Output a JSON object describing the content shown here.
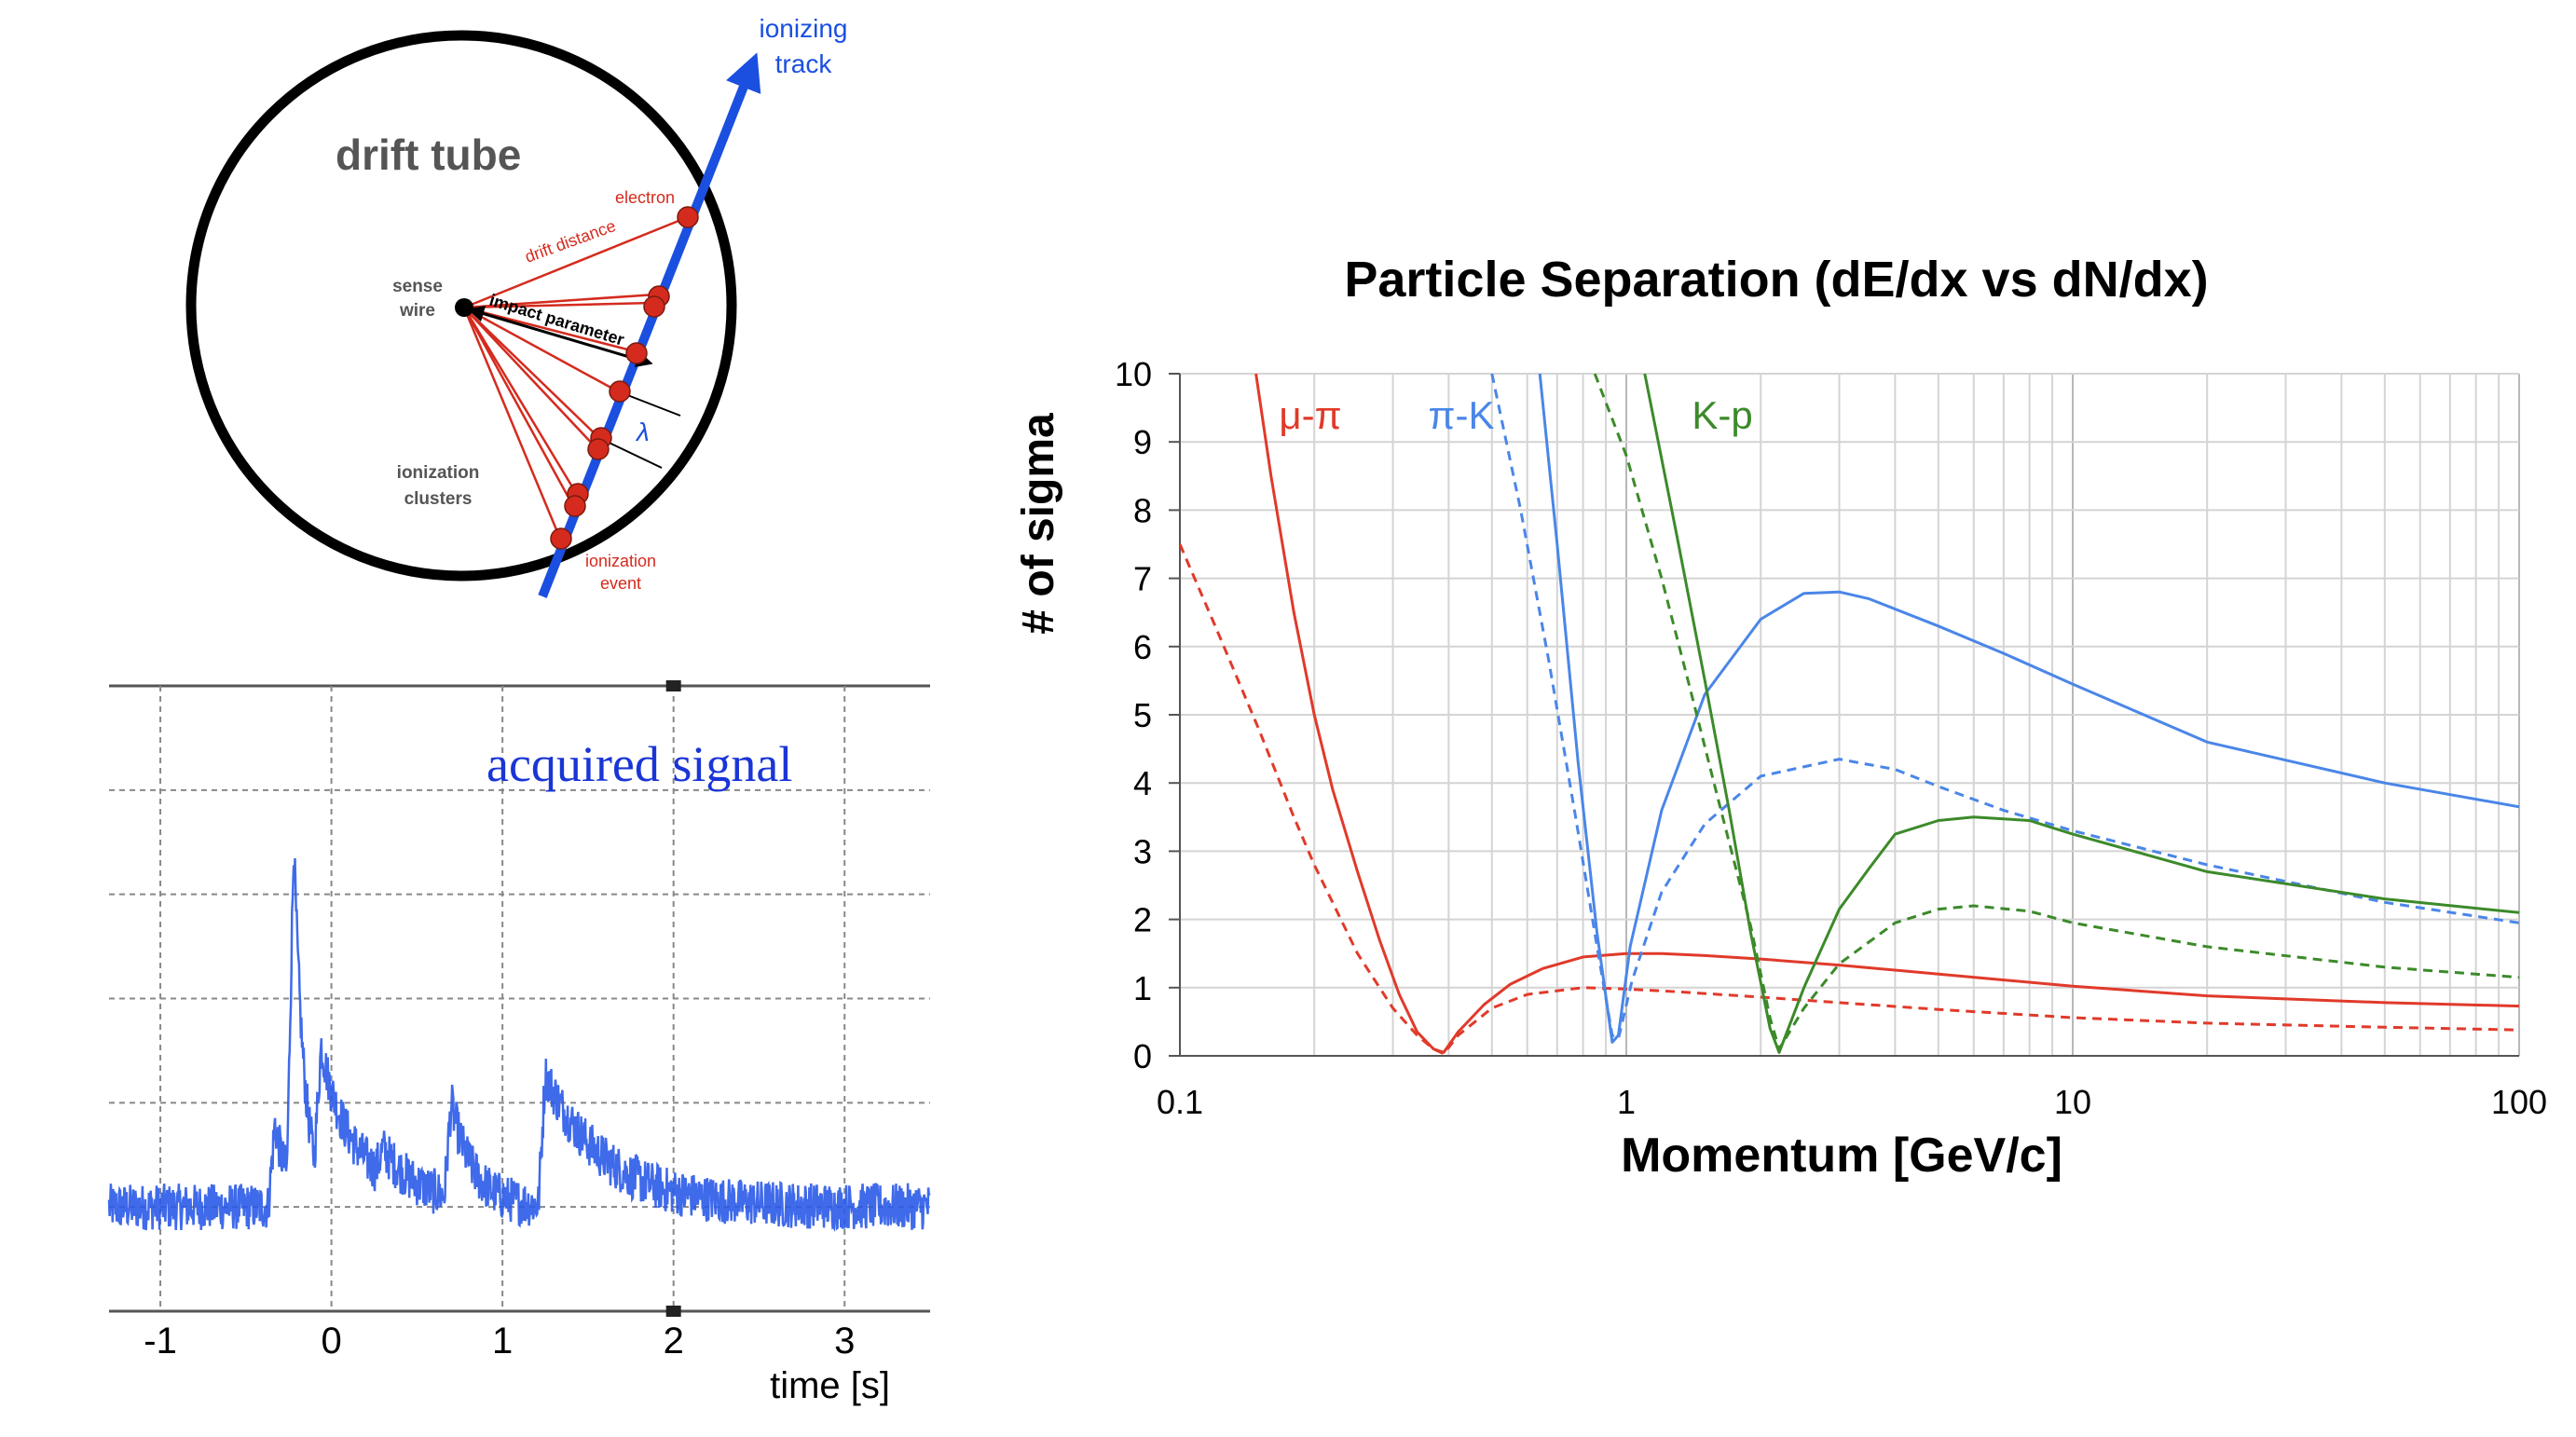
{
  "drift_tube": {
    "title": "drift tube",
    "track_label_line1": "ionizing",
    "track_label_line2": "track",
    "electron_label": "electron",
    "drift_distance_label": "drift distance",
    "sense_wire_line1": "sense",
    "sense_wire_line2": "wire",
    "impact_parameter_label": "impact parameter",
    "lambda_label": "λ",
    "clusters_line1": "ionization",
    "clusters_line2": "clusters",
    "event_line1": "ionization",
    "event_line2": "event",
    "colors": {
      "circle": "#000000",
      "track": "#1a4fe0",
      "red": "#d42b1e",
      "grey_text": "#555555"
    }
  },
  "chart_data": [
    {
      "id": "acquired-signal",
      "type": "line",
      "title": "acquired signal",
      "xlabel": "time [s]",
      "xticks": [
        "-1",
        "0",
        "1",
        "2",
        "3"
      ],
      "xtick_values": [
        -1,
        0,
        1,
        2,
        3
      ],
      "xlim": [
        -1.3,
        3.5
      ],
      "ylim": [
        0,
        6
      ],
      "grid": true,
      "color": "#2a5ae8",
      "baseline": 1.0,
      "events": [
        {
          "t": -0.33,
          "amp": 0.8,
          "decay": 0.08
        },
        {
          "t": -0.22,
          "amp": 3.3,
          "decay": 0.06
        },
        {
          "t": -0.06,
          "amp": 1.3,
          "decay": 0.25
        },
        {
          "t": 0.3,
          "amp": 0.25,
          "decay": 0.2
        },
        {
          "t": 0.7,
          "amp": 0.9,
          "decay": 0.12
        },
        {
          "t": 1.25,
          "amp": 1.25,
          "decay": 0.35
        }
      ]
    },
    {
      "id": "particle-separation",
      "type": "line",
      "title": "Particle Separation (dE/dx vs dN/dx)",
      "xlabel": "Momentum [GeV/c]",
      "ylabel": "# of sigma",
      "xscale": "log",
      "xlim": [
        0.1,
        100
      ],
      "ylim": [
        0,
        10
      ],
      "xticks": [
        "0.1",
        "1",
        "10",
        "100"
      ],
      "xtick_values": [
        0.1,
        1,
        10,
        100
      ],
      "yticks": [
        "0",
        "1",
        "2",
        "3",
        "4",
        "5",
        "6",
        "7",
        "8",
        "9",
        "10"
      ],
      "grid": true,
      "legend": [
        {
          "name": "μ-π",
          "color": "#e03a2a"
        },
        {
          "name": "π-K",
          "color": "#4a86e8"
        },
        {
          "name": "K-p",
          "color": "#3c8a2a"
        }
      ],
      "series": [
        {
          "name": "μ-π solid",
          "color": "#e03a2a",
          "dashed": false,
          "x": [
            0.148,
            0.16,
            0.18,
            0.2,
            0.22,
            0.25,
            0.28,
            0.31,
            0.34,
            0.37,
            0.39,
            0.42,
            0.48,
            0.55,
            0.65,
            0.8,
            1.0,
            1.2,
            1.5,
            2,
            3,
            5,
            10,
            20,
            50,
            100
          ],
          "y": [
            10,
            8.5,
            6.5,
            5.0,
            3.9,
            2.7,
            1.7,
            0.9,
            0.35,
            0.1,
            0.05,
            0.35,
            0.75,
            1.05,
            1.28,
            1.45,
            1.5,
            1.5,
            1.47,
            1.42,
            1.33,
            1.2,
            1.02,
            0.88,
            0.78,
            0.73
          ]
        },
        {
          "name": "μ-π dashed",
          "color": "#e03a2a",
          "dashed": true,
          "x": [
            0.1,
            0.12,
            0.15,
            0.18,
            0.2,
            0.25,
            0.3,
            0.34,
            0.37,
            0.39,
            0.42,
            0.5,
            0.6,
            0.8,
            1.0,
            1.3,
            2,
            3,
            5,
            10,
            20,
            50,
            100
          ],
          "y": [
            7.5,
            6.3,
            4.8,
            3.5,
            2.8,
            1.5,
            0.7,
            0.3,
            0.1,
            0.03,
            0.3,
            0.7,
            0.9,
            1.0,
            0.98,
            0.94,
            0.86,
            0.78,
            0.68,
            0.56,
            0.48,
            0.42,
            0.38
          ]
        },
        {
          "name": "π-K solid",
          "color": "#4a86e8",
          "dashed": false,
          "x": [
            0.64,
            0.7,
            0.78,
            0.86,
            0.93,
            0.96,
            1.02,
            1.2,
            1.5,
            2,
            2.5,
            3,
            3.5,
            5,
            7,
            10,
            20,
            50,
            100
          ],
          "y": [
            10,
            7.5,
            4.3,
            1.8,
            0.2,
            0.3,
            1.6,
            3.6,
            5.3,
            6.4,
            6.78,
            6.8,
            6.7,
            6.3,
            5.9,
            5.45,
            4.6,
            4.0,
            3.65
          ]
        },
        {
          "name": "π-K dashed",
          "color": "#4a86e8",
          "dashed": true,
          "x": [
            0.5,
            0.58,
            0.67,
            0.77,
            0.86,
            0.93,
            0.96,
            1.03,
            1.2,
            1.5,
            2,
            3,
            4,
            5,
            7,
            10,
            20,
            50,
            100
          ],
          "y": [
            10,
            8.0,
            5.8,
            3.5,
            1.6,
            0.3,
            0.25,
            1.1,
            2.4,
            3.4,
            4.1,
            4.35,
            4.2,
            3.95,
            3.6,
            3.3,
            2.8,
            2.25,
            1.95
          ]
        },
        {
          "name": "K-p solid",
          "color": "#3c8a2a",
          "dashed": false,
          "x": [
            1.1,
            1.3,
            1.5,
            1.7,
            1.9,
            2.1,
            2.2,
            2.5,
            3.0,
            3.5,
            4.0,
            5,
            6,
            8,
            10,
            20,
            50,
            100
          ],
          "y": [
            10,
            7.6,
            5.5,
            3.6,
            1.8,
            0.4,
            0.05,
            1.0,
            2.15,
            2.75,
            3.25,
            3.45,
            3.5,
            3.45,
            3.25,
            2.7,
            2.3,
            2.1
          ]
        },
        {
          "name": "K-p dashed",
          "color": "#3c8a2a",
          "dashed": true,
          "x": [
            0.85,
            1.0,
            1.2,
            1.4,
            1.6,
            1.9,
            2.1,
            2.2,
            2.5,
            3,
            4,
            5,
            6,
            8,
            10,
            20,
            50,
            100
          ],
          "y": [
            10,
            8.8,
            7.0,
            5.3,
            3.8,
            1.9,
            0.55,
            0.1,
            0.7,
            1.35,
            1.95,
            2.15,
            2.2,
            2.12,
            1.95,
            1.6,
            1.3,
            1.15
          ]
        }
      ]
    }
  ]
}
